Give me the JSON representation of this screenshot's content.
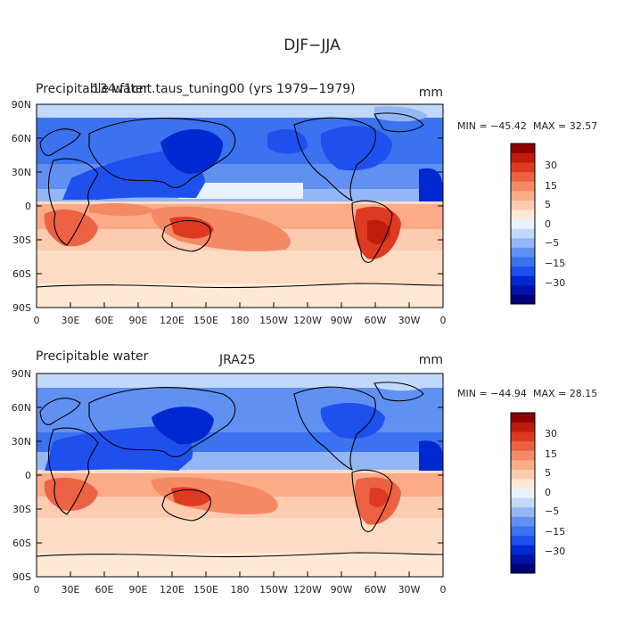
{
  "figure_title": "DJF−JJA",
  "colorbar_ticks": [
    "30",
    "15",
    "5",
    "0",
    "−5",
    "−15",
    "−30"
  ],
  "colors": {
    "levels": [
      "#00007a",
      "#0012a8",
      "#0028d0",
      "#1e50ee",
      "#3a72f0",
      "#6090f2",
      "#95b6f4",
      "#c2d8fa",
      "#e8f2fc",
      "#ffe9d6",
      "#fccbb0",
      "#fbab88",
      "#f48a64",
      "#ec6242",
      "#de3a22",
      "#c01c0c",
      "#8c0000"
    ]
  },
  "chart_data": [
    {
      "type": "heatmap",
      "title": "Precipitable water",
      "subtitle": "134.f1cnt.taus_tuning00 (yrs 1979−1979)",
      "units": "mm",
      "min_label": "MIN = −45.42",
      "max_label": "MAX =  32.57",
      "min": -45.42,
      "max": 32.57,
      "x_ticks": [
        "0",
        "30E",
        "60E",
        "90E",
        "120E",
        "150E",
        "180",
        "150W",
        "120W",
        "90W",
        "60W",
        "30W",
        "0"
      ],
      "y_ticks": [
        "90N",
        "60N",
        "30N",
        "0",
        "30S",
        "60S",
        "90S"
      ],
      "xlim": [
        0,
        360
      ],
      "ylim": [
        -90,
        90
      ]
    },
    {
      "type": "heatmap",
      "title": "Precipitable water",
      "subtitle": "JRA25",
      "units": "mm",
      "min_label": "MIN = −44.94",
      "max_label": "MAX =  28.15",
      "min": -44.94,
      "max": 28.15,
      "x_ticks": [
        "0",
        "30E",
        "60E",
        "90E",
        "120E",
        "150E",
        "180",
        "150W",
        "120W",
        "90W",
        "60W",
        "30W",
        "0"
      ],
      "y_ticks": [
        "90N",
        "60N",
        "30N",
        "0",
        "30S",
        "60S",
        "90S"
      ],
      "xlim": [
        0,
        360
      ],
      "ylim": [
        -90,
        90
      ]
    }
  ]
}
